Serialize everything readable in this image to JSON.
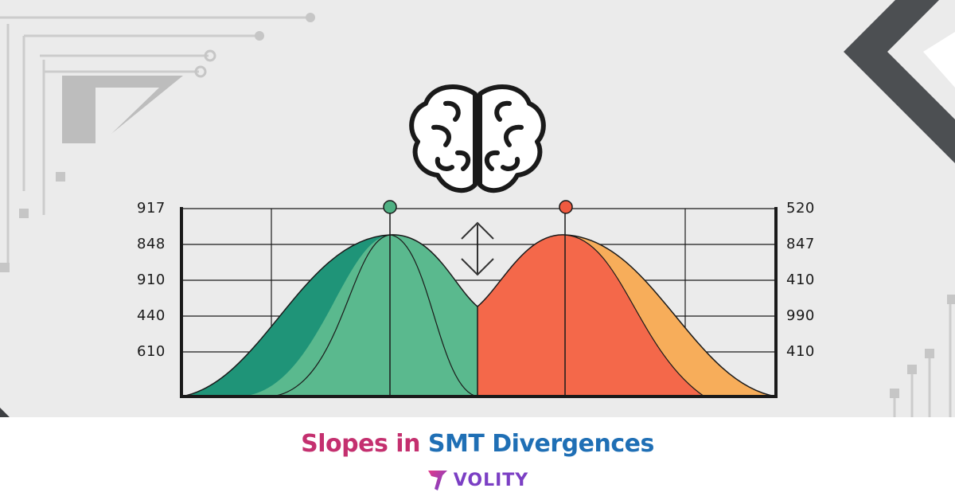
{
  "chart": {
    "left_axis_labels": [
      "917",
      "848",
      "910",
      "440",
      "610"
    ],
    "right_axis_labels": [
      "520",
      "847",
      "410",
      "990",
      "410"
    ]
  },
  "colors": {
    "teal_dark": "#1f9478",
    "teal_light": "#5ab98e",
    "orange_red": "#f4684a",
    "orange_light": "#f7ad5a",
    "title_pink": "#c4306f",
    "title_blue": "#1f6fb5",
    "brand_purple": "#7b3fc4"
  },
  "icons": [
    "brain-icon",
    "up-down-arrow-icon",
    "volity-logo-icon"
  ],
  "footer": {
    "title_part1": "Slopes in",
    "title_part2": "SMT Divergences",
    "brand_name": "VOLITY"
  }
}
